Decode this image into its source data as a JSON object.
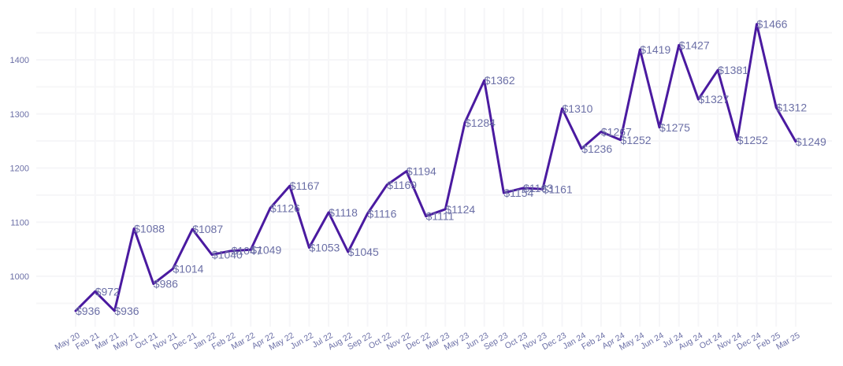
{
  "chart_data": {
    "type": "line",
    "title": "",
    "xlabel": "",
    "ylabel": "",
    "categories": [
      "May 20",
      "Feb 21",
      "Mar 21",
      "May 21",
      "Oct 21",
      "Nov 21",
      "Dec 21",
      "Jan 22",
      "Feb 22",
      "Mar 22",
      "Apr 22",
      "May 22",
      "Jun 22",
      "Jul 22",
      "Aug 22",
      "Sep 22",
      "Oct 22",
      "Nov 22",
      "Dec 22",
      "Mar 23",
      "May 23",
      "Jun 23",
      "Sep 23",
      "Oct 23",
      "Nov 23",
      "Dec 23",
      "Jan 24",
      "Feb 24",
      "Apr 24",
      "May 24",
      "Jun 24",
      "Jul 24",
      "Aug 24",
      "Oct 24",
      "Nov 24",
      "Dec 24",
      "Feb 25",
      "Mar 25"
    ],
    "series": [
      {
        "values": [
          936,
          972,
          936,
          1088,
          986,
          1014,
          1087,
          1040,
          1047,
          1049,
          1126,
          1167,
          1053,
          1118,
          1045,
          1116,
          1169,
          1194,
          1111,
          1124,
          1284,
          1362,
          1154,
          1163,
          1161,
          1310,
          1236,
          1267,
          1252,
          1419,
          1275,
          1427,
          1327,
          1381,
          1252,
          1466,
          1312,
          1249
        ],
        "labels": [
          "$936",
          "$972",
          "$936",
          "$1088",
          "$986",
          "$1014",
          "$1087",
          "$1040",
          "$1047",
          "$1049",
          "$1126",
          "$1167",
          "$1053",
          "$1118",
          "$1045",
          "$1116",
          "$1169",
          "$1194",
          "$1111",
          "$1124",
          "$1284",
          "$1362",
          "$1154",
          "$1163",
          "$1161",
          "$1310",
          "$1236",
          "$1267",
          "$1252",
          "$1419",
          "$1275",
          "$1427",
          "$1327",
          "$1381",
          "$1252",
          "$1466",
          "$1312",
          "$1249"
        ],
        "color": "#4a1aa0"
      }
    ],
    "y_ticks": [
      1000,
      1100,
      1200,
      1300,
      1400
    ],
    "ylim": [
      915,
      1490
    ],
    "grid": true,
    "legend": "none"
  }
}
